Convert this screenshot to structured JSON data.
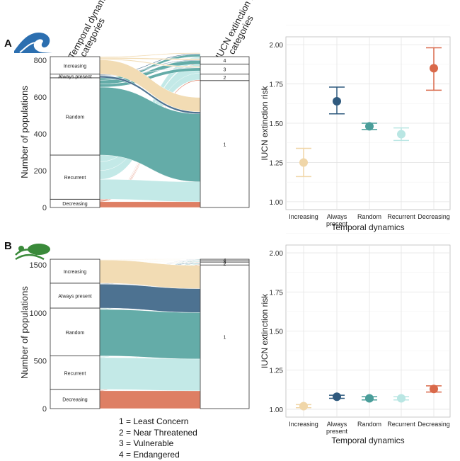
{
  "panels": [
    {
      "label": "A",
      "icon": "wave-icon",
      "alluvial": {
        "left_header": "Temporal dynamics categories",
        "right_header": "IUCN extinction risk categories",
        "ylabel": "Number of populations",
        "yticks": [
          0,
          200,
          400,
          600,
          800
        ],
        "ymax": 820,
        "left_strata": [
          {
            "name": "Decreasing",
            "count": 45,
            "color": "#d9694a"
          },
          {
            "name": "Recurrent",
            "count": 240,
            "color": "#b9e6e3"
          },
          {
            "name": "Random",
            "count": 420,
            "color": "#4a9e9a"
          },
          {
            "name": "Always present",
            "count": 20,
            "color": "#2f5a7e"
          },
          {
            "name": "Increasing",
            "count": 95,
            "color": "#f0d6a8"
          }
        ],
        "right_strata": [
          {
            "name": "1",
            "count": 690
          },
          {
            "name": "2",
            "count": 35
          },
          {
            "name": "3",
            "count": 55
          },
          {
            "name": "4",
            "count": 40
          }
        ]
      },
      "points": {
        "ylabel": "IUCN extinction risk",
        "xlabel": "Temporal dynamics",
        "ylim": [
          0.95,
          2.05
        ],
        "yticks": [
          "1.00",
          "1.25",
          "1.50",
          "1.75",
          "2.00"
        ]
      }
    },
    {
      "label": "B",
      "icon": "leaf-icon",
      "alluvial": {
        "ylabel": "Number of populations",
        "yticks": [
          0,
          500,
          1000,
          1500
        ],
        "ymax": 1590,
        "left_strata": [
          {
            "name": "Decreasing",
            "count": 200,
            "color": "#d9694a"
          },
          {
            "name": "Recurrent",
            "count": 350,
            "color": "#b9e6e3"
          },
          {
            "name": "Random",
            "count": 500,
            "color": "#4a9e9a"
          },
          {
            "name": "Always present",
            "count": 260,
            "color": "#2f5a7e"
          },
          {
            "name": "Increasing",
            "count": 250,
            "color": "#f0d6a8"
          }
        ],
        "right_strata": [
          {
            "name": "1",
            "count": 1500
          },
          {
            "name": "2",
            "count": 30
          },
          {
            "name": "3",
            "count": 15
          },
          {
            "name": "4",
            "count": 15
          }
        ]
      },
      "points": {
        "ylabel": "IUCN extinction risk",
        "xlabel": "Temporal dynamics",
        "ylim": [
          0.95,
          2.05
        ],
        "yticks": [
          "1.00",
          "1.25",
          "1.50",
          "1.75",
          "2.00"
        ]
      }
    }
  ],
  "chart_data": [
    {
      "type": "scatter",
      "panel": "A",
      "ylabel": "IUCN extinction risk",
      "xlabel": "Temporal dynamics",
      "ylim": [
        0.95,
        2.05
      ],
      "categories": [
        "Increasing",
        "Always\npresent",
        "Random",
        "Recurrent",
        "Decreasing"
      ],
      "colors": [
        "#f0d6a8",
        "#2f5a7e",
        "#4a9e9a",
        "#b9e6e3",
        "#d9694a"
      ],
      "values": [
        1.25,
        1.64,
        1.48,
        1.43,
        1.85
      ],
      "lower": [
        1.16,
        1.56,
        1.46,
        1.39,
        1.71
      ],
      "upper": [
        1.34,
        1.73,
        1.5,
        1.47,
        1.98
      ]
    },
    {
      "type": "scatter",
      "panel": "B",
      "ylabel": "IUCN extinction risk",
      "xlabel": "Temporal dynamics",
      "ylim": [
        0.95,
        2.05
      ],
      "categories": [
        "Increasing",
        "Always\npresent",
        "Random",
        "Recurrent",
        "Decreasing"
      ],
      "colors": [
        "#f0d6a8",
        "#2f5a7e",
        "#4a9e9a",
        "#b9e6e3",
        "#d9694a"
      ],
      "values": [
        1.02,
        1.08,
        1.07,
        1.07,
        1.13
      ],
      "lower": [
        1.01,
        1.07,
        1.06,
        1.06,
        1.11
      ],
      "upper": [
        1.03,
        1.09,
        1.08,
        1.08,
        1.15
      ]
    }
  ],
  "legend": [
    "1 = Least Concern",
    "2 = Near Threatened",
    "3 = Vulnerable",
    "4 = Endangered"
  ]
}
